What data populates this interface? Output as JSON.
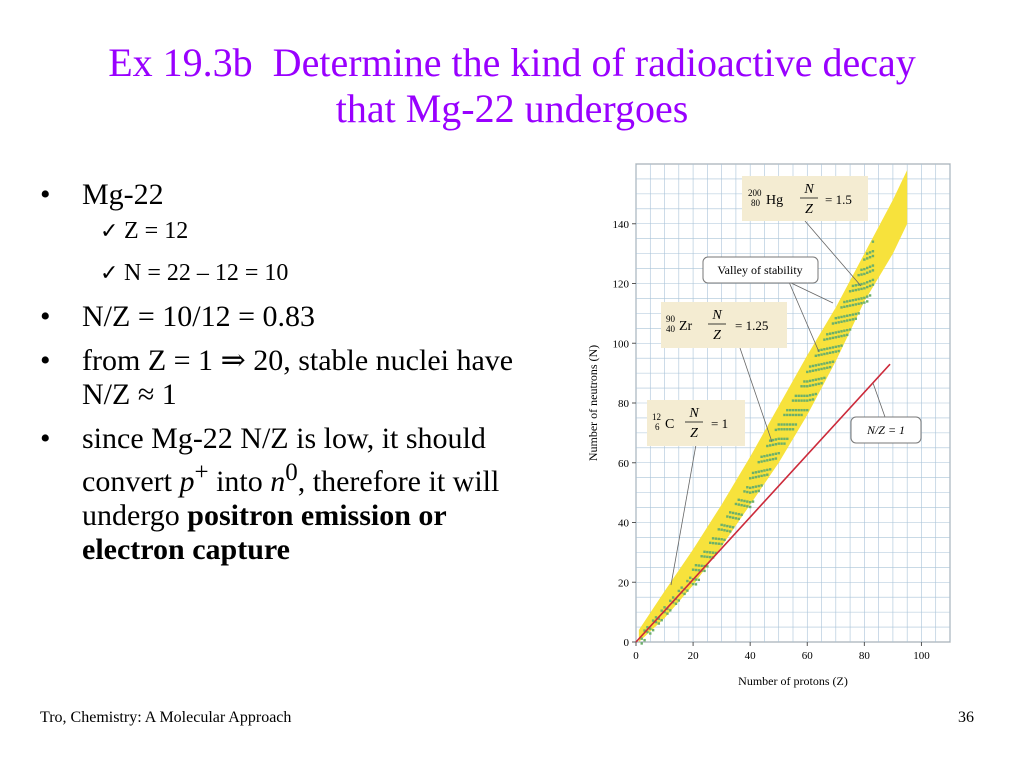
{
  "title": {
    "line1": "Ex 19.3b  Determine the kind of radioactive decay",
    "line2": "that Mg-22 undergoes"
  },
  "bullets": {
    "b1": "Mg-22",
    "b1_sub1": "Z = 12",
    "b1_sub2": "N = 22 – 12 = 10",
    "b2": "N/Z = 10/12 = 0.83",
    "b3_part1": "from Z = 1 ",
    "b3_arrow": "⇒",
    "b3_part2": " 20, stable nuclei have N/Z ≈ 1",
    "b4_part1": "since Mg-22 N/Z is low, it should convert ",
    "b4_p": "p",
    "b4_p_sup": "+",
    "b4_into": " into ",
    "b4_n": "n",
    "b4_n_sup": "0",
    "b4_part2": ", therefore it will undergo ",
    "b4_bold": "positron emission or electron capture"
  },
  "footer": {
    "source": "Tro, Chemistry: A Molecular Approach",
    "page": "36"
  },
  "colors": {
    "title": "#9900ff",
    "band": "#f7e23c",
    "stable_points": "#6cb06a",
    "nz_line": "#cc2a3a",
    "callout_bg": "#f4ecd2"
  },
  "chart_data": {
    "type": "scatter",
    "xlabel": "Number of protons (Z)",
    "ylabel": "Number of neutrons (N)",
    "xlim": [
      0,
      110
    ],
    "ylim": [
      0,
      160
    ],
    "xticks": [
      "0",
      "20",
      "40",
      "60",
      "80",
      "100"
    ],
    "yticks": [
      "0",
      "20",
      "40",
      "60",
      "80",
      "100",
      "120",
      "140"
    ],
    "grid": true,
    "band_lower": [
      [
        1,
        0
      ],
      [
        10,
        8
      ],
      [
        20,
        19
      ],
      [
        30,
        32
      ],
      [
        40,
        46
      ],
      [
        50,
        60
      ],
      [
        60,
        76
      ],
      [
        70,
        94
      ],
      [
        80,
        114
      ],
      [
        90,
        130
      ],
      [
        95,
        140
      ]
    ],
    "band_upper": [
      [
        1,
        4
      ],
      [
        10,
        17
      ],
      [
        20,
        31
      ],
      [
        30,
        46
      ],
      [
        40,
        62
      ],
      [
        50,
        79
      ],
      [
        60,
        96
      ],
      [
        70,
        112
      ],
      [
        80,
        130
      ],
      [
        90,
        148
      ],
      [
        95,
        158
      ]
    ],
    "stable_line": [
      [
        1,
        0
      ],
      [
        10,
        10
      ],
      [
        20,
        21
      ],
      [
        30,
        36
      ],
      [
        40,
        50
      ],
      [
        50,
        68
      ],
      [
        60,
        84
      ],
      [
        70,
        102
      ],
      [
        80,
        120
      ],
      [
        83,
        126
      ]
    ],
    "nz_line": [
      [
        0,
        0
      ],
      [
        89,
        93
      ]
    ],
    "annotations": {
      "hg_iso": "200 80",
      "hg_sym": "Hg",
      "hg_val": "= 1.5",
      "valley": "Valley of stability",
      "zr_iso": "90 40",
      "zr_sym": "Zr",
      "zr_val": "= 1.25",
      "c_iso": "12 6",
      "c_sym": "C",
      "c_val": "= 1",
      "frac_n": "N",
      "frac_z": "Z",
      "nz_label": "N/Z = 1"
    }
  }
}
